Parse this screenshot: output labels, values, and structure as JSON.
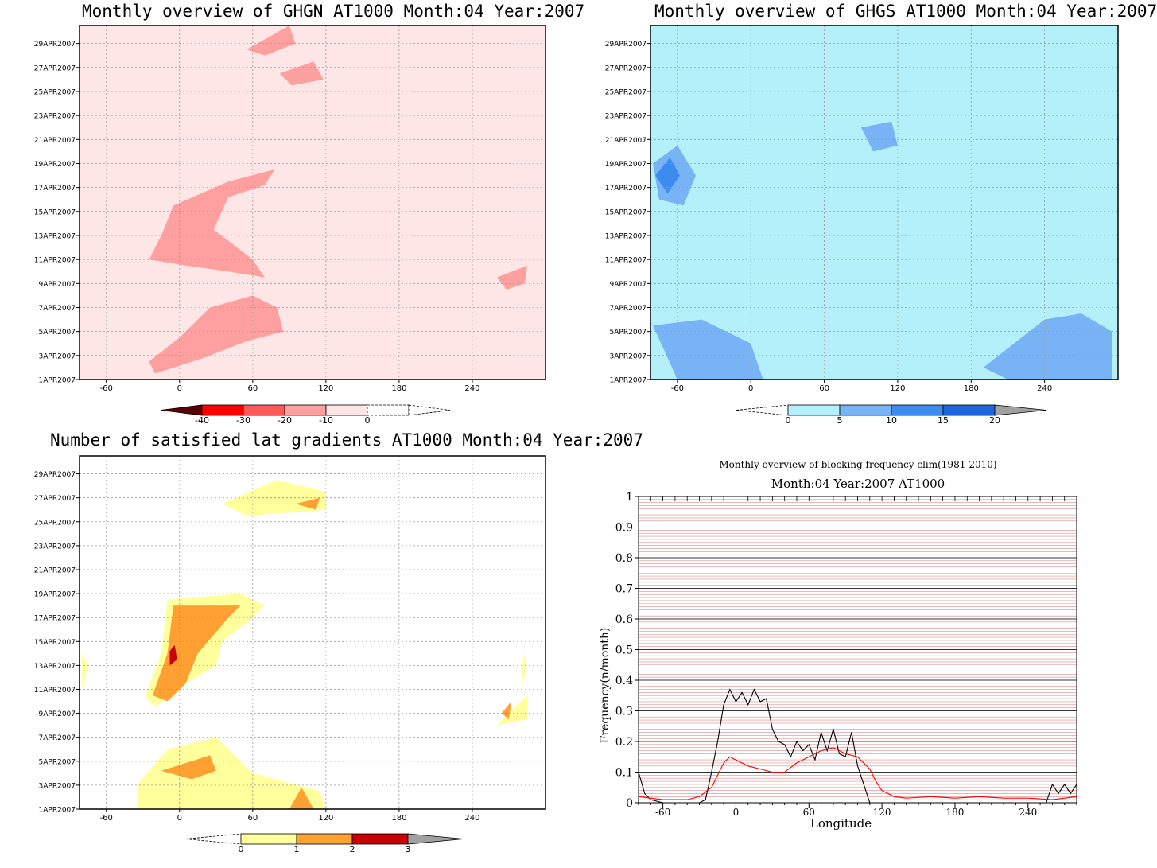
{
  "date_ticks": [
    "1APR2007",
    "3APR2007",
    "5APR2007",
    "7APR2007",
    "9APR2007",
    "11APR2007",
    "13APR2007",
    "15APR2007",
    "17APR2007",
    "19APR2007",
    "21APR2007",
    "23APR2007",
    "25APR2007",
    "27APR2007",
    "29APR2007"
  ],
  "lon_ticks": [
    "-60",
    "0",
    "60",
    "120",
    "180",
    "240"
  ],
  "panels": {
    "ghgn": {
      "title": "Monthly overview of GHGN AT1000 Month:04 Year:2007",
      "colorbar_labels": [
        "-40",
        "-30",
        "-20",
        "-10",
        "0"
      ],
      "colorbar_colors": [
        "#5a0000",
        "#ff0000",
        "#ff5a5a",
        "#ffa0a0",
        "#ffe6e6"
      ]
    },
    "ghgs": {
      "title": "Monthly overview of GHGS AT1000 Month:04 Year:2007",
      "colorbar_labels": [
        "0",
        "5",
        "10",
        "15",
        "20"
      ],
      "colorbar_colors": [
        "#b4f0fa",
        "#78b4f5",
        "#3c8cf0",
        "#1e64dc",
        "#a0a0a0"
      ]
    },
    "lat_gradients": {
      "title": "Number of satisfied lat gradients AT1000 Month:04 Year:2007",
      "colorbar_labels": [
        "0",
        "1",
        "2",
        "3"
      ],
      "colorbar_colors": [
        "#ffff9c",
        "#ffa032",
        "#c80000",
        "#a0a0a0"
      ]
    },
    "blocking": {
      "title": "Monthly overview of blocking frequency clim(1981-2010)",
      "subtitle": "Month:04 Year:2007  AT1000",
      "ylabel": "Frequency(n/month)",
      "xlabel": "Longitude",
      "y_ticks": [
        "0",
        "0.1",
        "0.2",
        "0.3",
        "0.4",
        "0.5",
        "0.6",
        "0.7",
        "0.8",
        "0.9",
        "1"
      ],
      "x_ticks": [
        "-60",
        "0",
        "60",
        "120",
        "180",
        "240"
      ]
    }
  },
  "chart_data": [
    {
      "type": "heatmap",
      "title": "Monthly overview of GHGN AT1000 Month:04 Year:2007",
      "x_axis": "longitude",
      "xlim": [
        -82,
        300
      ],
      "y_axis": "date",
      "ylim": [
        "1APR2007",
        "30APR2007"
      ],
      "levels": [
        -40,
        -30,
        -20,
        -10,
        0
      ],
      "colors": {
        "negative_light": "#ffe6e6",
        "mid": "#ffa0a0"
      },
      "regions": [
        {
          "level": -10,
          "shade": "#ffa0a0",
          "points": [
            [
              -5,
              14.5
            ],
            [
              40,
              16.5
            ],
            [
              78,
              17.5
            ],
            [
              70,
              16.2
            ],
            [
              40,
              15.2
            ],
            [
              28,
              12.5
            ],
            [
              60,
              10
            ],
            [
              70,
              8.5
            ],
            [
              40,
              9
            ],
            [
              5,
              9.5
            ],
            [
              -25,
              10
            ],
            [
              -15,
              12
            ]
          ]
        },
        {
          "level": -10,
          "shade": "#ffa0a0",
          "points": [
            [
              -25,
              1.5
            ],
            [
              0,
              3.5
            ],
            [
              25,
              6
            ],
            [
              60,
              7
            ],
            [
              80,
              6
            ],
            [
              85,
              4
            ],
            [
              55,
              3.2
            ],
            [
              20,
              1.8
            ],
            [
              -20,
              0.5
            ]
          ]
        },
        {
          "level": -10,
          "shade": "#ffa0a0",
          "points": [
            [
              55,
              27.5
            ],
            [
              90,
              29.5
            ],
            [
              95,
              28
            ],
            [
              70,
              27
            ]
          ]
        },
        {
          "level": -10,
          "shade": "#ffa0a0",
          "points": [
            [
              82,
              25.5
            ],
            [
              110,
              26.5
            ],
            [
              118,
              25
            ],
            [
              92,
              24.5
            ]
          ]
        },
        {
          "level": -10,
          "shade": "#ffa0a0",
          "points": [
            [
              260,
              8.5
            ],
            [
              285,
              9.5
            ],
            [
              283,
              8
            ],
            [
              268,
              7.5
            ]
          ]
        }
      ]
    },
    {
      "type": "heatmap",
      "title": "Monthly overview of GHGS AT1000 Month:04 Year:2007",
      "x_axis": "longitude",
      "xlim": [
        -82,
        300
      ],
      "y_axis": "date",
      "ylim": [
        "1APR2007",
        "30APR2007"
      ],
      "levels": [
        0,
        5,
        10,
        15,
        20
      ],
      "regions": [
        {
          "level": 5,
          "shade": "#78b4f5",
          "points": [
            [
              -80,
              18
            ],
            [
              -60,
              19.5
            ],
            [
              -45,
              17
            ],
            [
              -55,
              14.5
            ],
            [
              -75,
              15
            ]
          ]
        },
        {
          "level": 10,
          "shade": "#3c8cf0",
          "points": [
            [
              -78,
              17
            ],
            [
              -66,
              18.5
            ],
            [
              -58,
              17
            ],
            [
              -68,
              15.5
            ]
          ]
        },
        {
          "level": 5,
          "shade": "#78b4f5",
          "points": [
            [
              -80,
              4.5
            ],
            [
              -40,
              5
            ],
            [
              0,
              3
            ],
            [
              10,
              0
            ],
            [
              -60,
              0
            ]
          ]
        },
        {
          "level": 5,
          "shade": "#78b4f5",
          "points": [
            [
              190,
              1
            ],
            [
              240,
              5
            ],
            [
              270,
              5.5
            ],
            [
              295,
              4
            ],
            [
              295,
              0
            ],
            [
              210,
              0
            ]
          ]
        },
        {
          "level": 5,
          "shade": "#78b4f5",
          "points": [
            [
              90,
              21
            ],
            [
              115,
              21.5
            ],
            [
              120,
              19.5
            ],
            [
              100,
              19
            ]
          ]
        }
      ]
    },
    {
      "type": "heatmap",
      "title": "Number of satisfied lat gradients AT1000 Month:04 Year:2007",
      "x_axis": "longitude",
      "xlim": [
        -82,
        300
      ],
      "y_axis": "date",
      "ylim": [
        "1APR2007",
        "30APR2007"
      ],
      "levels": [
        0,
        1,
        2,
        3
      ],
      "regions": [
        {
          "level": 1,
          "shade": "#ffff9c",
          "points": [
            [
              -20,
              8.5
            ],
            [
              5,
              10.5
            ],
            [
              30,
              12
            ],
            [
              35,
              14
            ],
            [
              60,
              16
            ],
            [
              70,
              17
            ],
            [
              50,
              18
            ],
            [
              -10,
              17.5
            ],
            [
              -15,
              13
            ],
            [
              -28,
              9.5
            ]
          ]
        },
        {
          "level": 2,
          "shade": "#ffa032",
          "points": [
            [
              -10,
              9
            ],
            [
              5,
              10.5
            ],
            [
              15,
              13
            ],
            [
              40,
              16
            ],
            [
              50,
              17
            ],
            [
              -5,
              17
            ],
            [
              -10,
              13
            ],
            [
              -22,
              9.5
            ]
          ]
        },
        {
          "level": 3,
          "shade": "#c80000",
          "points": [
            [
              -8,
              12
            ],
            [
              -2,
              12.5
            ],
            [
              -4,
              13.7
            ],
            [
              -8,
              13.2
            ]
          ]
        },
        {
          "level": 1,
          "shade": "#ffff9c",
          "points": [
            [
              -35,
              0
            ],
            [
              120,
              0
            ],
            [
              115,
              1.5
            ],
            [
              60,
              3
            ],
            [
              30,
              6
            ],
            [
              -10,
              5
            ],
            [
              -35,
              2
            ]
          ]
        },
        {
          "level": 2,
          "shade": "#ffa032",
          "points": [
            [
              -15,
              3.2
            ],
            [
              25,
              4.5
            ],
            [
              30,
              3.2
            ],
            [
              10,
              2.5
            ]
          ]
        },
        {
          "level": 2,
          "shade": "#ffa032",
          "points": [
            [
              90,
              0
            ],
            [
              110,
              0
            ],
            [
              100,
              1.8
            ]
          ]
        },
        {
          "level": 1,
          "shade": "#ffff9c",
          "points": [
            [
              35,
              25.5
            ],
            [
              80,
              27.5
            ],
            [
              120,
              26.5
            ],
            [
              120,
              25
            ],
            [
              55,
              24.5
            ]
          ]
        },
        {
          "level": 2,
          "shade": "#ffa032",
          "points": [
            [
              95,
              25.5
            ],
            [
              115,
              26
            ],
            [
              112,
              25
            ]
          ]
        },
        {
          "level": 1,
          "shade": "#ffff9c",
          "points": [
            [
              260,
              7
            ],
            [
              285,
              9.5
            ],
            [
              285,
              7.5
            ]
          ]
        },
        {
          "level": 2,
          "shade": "#ffa032",
          "points": [
            [
              264,
              8
            ],
            [
              272,
              9
            ],
            [
              270,
              7.5
            ]
          ]
        },
        {
          "level": 1,
          "shade": "#ffff9c",
          "points": [
            [
              -80,
              10
            ],
            [
              -75,
              12
            ],
            [
              -80,
              13
            ]
          ]
        },
        {
          "level": 1,
          "shade": "#ffff9c",
          "points": [
            [
              280,
              10
            ],
            [
              285,
              12
            ],
            [
              282,
              13
            ]
          ]
        }
      ]
    },
    {
      "type": "line",
      "title": "Monthly overview of blocking frequency clim(1981-2010)",
      "subtitle": "Month:04 Year:2007  AT1000",
      "xlabel": "Longitude",
      "ylabel": "Frequency(n/month)",
      "xlim": [
        -80,
        280
      ],
      "ylim": [
        0,
        1
      ],
      "series": [
        {
          "color": "#000000",
          "x": [
            -80,
            -75,
            -70,
            -60,
            -50,
            -40,
            -30,
            -25,
            -20,
            -15,
            -10,
            -5,
            0,
            5,
            10,
            15,
            20,
            25,
            30,
            35,
            40,
            45,
            50,
            55,
            60,
            65,
            70,
            75,
            80,
            85,
            90,
            95,
            100,
            105,
            110,
            115,
            120,
            130,
            140,
            150,
            160,
            170,
            180,
            190,
            200,
            210,
            220,
            230,
            240,
            250,
            255,
            260,
            265,
            270,
            275,
            280
          ],
          "y": [
            0.1,
            0.03,
            0.01,
            0,
            0,
            0,
            0,
            0.01,
            0.1,
            0.2,
            0.32,
            0.37,
            0.33,
            0.36,
            0.32,
            0.37,
            0.33,
            0.34,
            0.24,
            0.2,
            0.19,
            0.15,
            0.2,
            0.17,
            0.19,
            0.14,
            0.23,
            0.17,
            0.24,
            0.16,
            0.15,
            0.23,
            0.12,
            0.06,
            0.0,
            0,
            0,
            0,
            0,
            0,
            0,
            0,
            0,
            0,
            0,
            0,
            0,
            0,
            0,
            0,
            0,
            0.06,
            0.03,
            0.06,
            0.03,
            0.06
          ]
        },
        {
          "color": "#ff0000",
          "x": [
            -80,
            -70,
            -60,
            -50,
            -40,
            -30,
            -20,
            -10,
            -5,
            0,
            10,
            20,
            30,
            40,
            50,
            60,
            70,
            80,
            90,
            100,
            110,
            115,
            120,
            130,
            140,
            160,
            180,
            200,
            220,
            240,
            260,
            270,
            280
          ],
          "y": [
            0.02,
            0.015,
            0.01,
            0.01,
            0.01,
            0.02,
            0.05,
            0.13,
            0.15,
            0.14,
            0.12,
            0.11,
            0.1,
            0.1,
            0.13,
            0.15,
            0.17,
            0.18,
            0.16,
            0.15,
            0.11,
            0.07,
            0.04,
            0.02,
            0.015,
            0.02,
            0.015,
            0.02,
            0.015,
            0.015,
            0.01,
            0.015,
            0.02
          ]
        }
      ]
    }
  ]
}
